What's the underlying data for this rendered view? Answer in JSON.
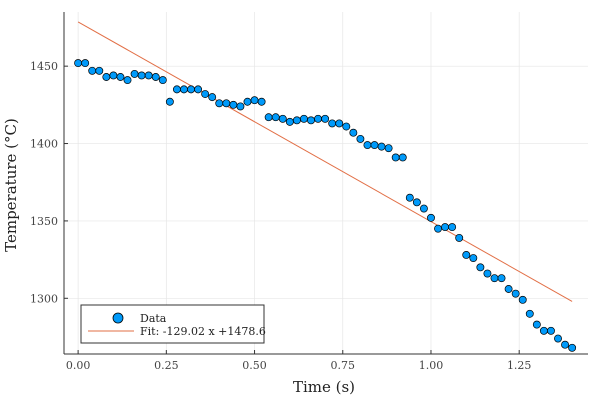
{
  "chart_data": {
    "type": "scatter",
    "xlabel": "Time (s)",
    "ylabel": "Temperature (°C)",
    "xlim": [
      -0.04,
      1.445
    ],
    "ylim": [
      1264,
      1485
    ],
    "xticks": [
      0.0,
      0.25,
      0.5,
      0.75,
      1.0,
      1.25
    ],
    "xtick_labels": [
      "0.00",
      "0.25",
      "0.50",
      "0.75",
      "1.00",
      "1.25"
    ],
    "yticks": [
      1300,
      1350,
      1400,
      1450
    ],
    "ytick_labels": [
      "1300",
      "1350",
      "1400",
      "1450"
    ],
    "grid": true,
    "legend_position": "bottom-left",
    "series": [
      {
        "name": "Data",
        "kind": "scatter",
        "color": "#009AFA",
        "x": [
          0.0,
          0.02,
          0.04,
          0.06,
          0.08,
          0.1,
          0.12,
          0.14,
          0.16,
          0.18,
          0.2,
          0.22,
          0.24,
          0.26,
          0.28,
          0.3,
          0.32,
          0.34,
          0.36,
          0.38,
          0.4,
          0.42,
          0.44,
          0.46,
          0.48,
          0.5,
          0.52,
          0.54,
          0.56,
          0.58,
          0.6,
          0.62,
          0.64,
          0.66,
          0.68,
          0.7,
          0.72,
          0.74,
          0.76,
          0.78,
          0.8,
          0.82,
          0.84,
          0.86,
          0.88,
          0.9,
          0.92,
          0.94,
          0.96,
          0.98,
          1.0,
          1.02,
          1.04,
          1.06,
          1.08,
          1.1,
          1.12,
          1.14,
          1.16,
          1.18,
          1.2,
          1.22,
          1.24,
          1.26,
          1.28,
          1.3,
          1.32,
          1.34,
          1.36,
          1.38,
          1.4
        ],
        "y": [
          1452,
          1452,
          1447,
          1447,
          1443,
          1444,
          1443,
          1441,
          1445,
          1444,
          1444,
          1443,
          1441,
          1427,
          1435,
          1435,
          1435,
          1435,
          1432,
          1430,
          1426,
          1426,
          1425,
          1424,
          1427,
          1428,
          1427,
          1417,
          1417,
          1416,
          1414,
          1415,
          1416,
          1415,
          1416,
          1416,
          1413,
          1413,
          1411,
          1407,
          1403,
          1399,
          1399,
          1398,
          1397,
          1391,
          1391,
          1365,
          1362,
          1358,
          1352,
          1345,
          1346,
          1346,
          1339,
          1328,
          1326,
          1320,
          1316,
          1313,
          1313,
          1306,
          1303,
          1299,
          1290,
          1283,
          1279,
          1279,
          1274,
          1270,
          1268
        ]
      },
      {
        "name": "Fit: -129.02 x +1478.6",
        "kind": "line",
        "color": "#E26F46",
        "slope": -129.02,
        "intercept": 1478.6,
        "x_range": [
          0.0,
          1.4
        ]
      }
    ]
  }
}
